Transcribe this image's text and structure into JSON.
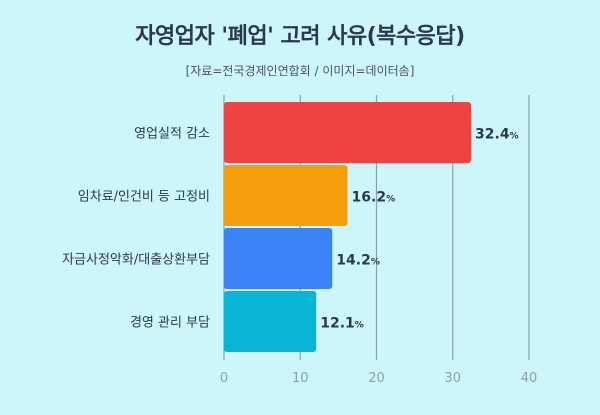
{
  "title": "자영업자 '폐업' 고려 사유(복수응답)",
  "subtitle": "[자료=전국경제인연합회 / 이미지=데이터솜]",
  "colors": {
    "bar_colors": [
      "#ee4444",
      "#f59e0b",
      "#3b82f6",
      "#06b6d4"
    ],
    "grid": "#8aa0ad",
    "tick_text": "#8aa0ad",
    "label_text": "#2b3a4a"
  },
  "chart_data": {
    "type": "bar",
    "orientation": "horizontal",
    "categories": [
      "영업실적 감소",
      "임차료/인건비 등 고정비",
      "자금사정악화/대출상환부담",
      "경영 관리 부담"
    ],
    "values": [
      32.4,
      16.2,
      14.2,
      12.1
    ],
    "value_labels": [
      "32.4",
      "16.2",
      "14.2",
      "12.1"
    ],
    "value_unit": "%",
    "xlim": [
      0,
      40
    ],
    "xticks": [
      "0",
      "10",
      "20",
      "30",
      "40"
    ],
    "grid": true
  }
}
